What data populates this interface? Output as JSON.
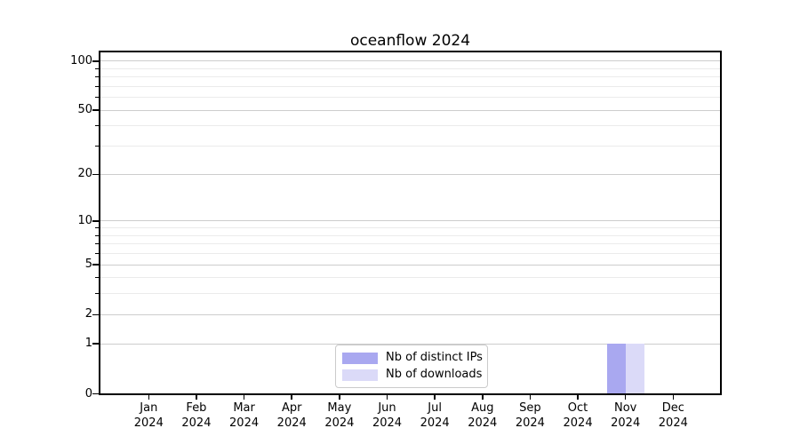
{
  "figure": {
    "background": "#ffffff"
  },
  "chart_data": {
    "type": "bar",
    "title": "oceanflow 2024",
    "categories": [
      "Jan 2024",
      "Feb 2024",
      "Mar 2024",
      "Apr 2024",
      "May 2024",
      "Jun 2024",
      "Jul 2024",
      "Aug 2024",
      "Sep 2024",
      "Oct 2024",
      "Nov 2024",
      "Dec 2024"
    ],
    "x_tick_line1": [
      "Jan",
      "Feb",
      "Mar",
      "Apr",
      "May",
      "Jun",
      "Jul",
      "Aug",
      "Sep",
      "Oct",
      "Nov",
      "Dec"
    ],
    "x_tick_line2": "2024",
    "series": [
      {
        "name": "Nb of distinct IPs",
        "color": "#a9a8f0",
        "values": [
          0,
          0,
          0,
          0,
          0,
          0,
          0,
          0,
          0,
          0,
          1,
          0
        ]
      },
      {
        "name": "Nb of downloads",
        "color": "#dbdaf8",
        "values": [
          0,
          0,
          0,
          0,
          0,
          0,
          0,
          0,
          0,
          0,
          1,
          0
        ]
      }
    ],
    "xlabel": "",
    "ylabel": "",
    "yscale": "log1p",
    "ylim": [
      0,
      115
    ],
    "y_major_ticks": [
      0,
      1,
      2,
      5,
      10,
      20,
      50,
      100
    ],
    "y_minor_ticks": [
      3,
      4,
      6,
      7,
      8,
      9,
      30,
      40,
      60,
      70,
      80,
      90
    ],
    "grid": "horizontal",
    "grid_major_color": "#cdcdcd",
    "grid_minor_color": "#ebebeb",
    "axis_color": "#000000",
    "legend_position": "lower center"
  }
}
